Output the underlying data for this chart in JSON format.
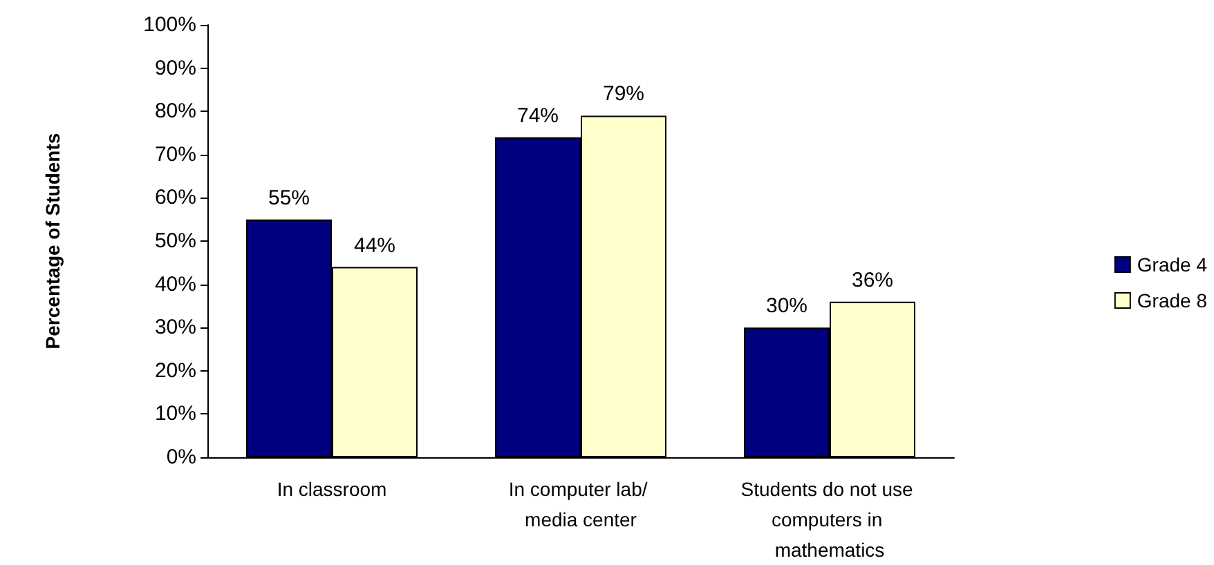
{
  "chart_data": {
    "type": "bar",
    "ylabel": "Percentage of Students",
    "categories": [
      "In classroom",
      "In computer lab/ media center",
      "Students do not use computers in mathematics"
    ],
    "series": [
      {
        "name": "Grade 4",
        "color": "#000080",
        "values": [
          55,
          74,
          30
        ],
        "value_labels": [
          "55%",
          "74%",
          "30%"
        ]
      },
      {
        "name": "Grade 8",
        "color": "#ffffcc",
        "values": [
          44,
          79,
          36
        ],
        "value_labels": [
          "44%",
          "79%",
          "36%"
        ]
      }
    ],
    "ylim": [
      0,
      100
    ],
    "yticks": [
      {
        "value": 0,
        "label": "0%"
      },
      {
        "value": 10,
        "label": "10%"
      },
      {
        "value": 20,
        "label": "20%"
      },
      {
        "value": 30,
        "label": "30%"
      },
      {
        "value": 40,
        "label": "40%"
      },
      {
        "value": 50,
        "label": "50%"
      },
      {
        "value": 60,
        "label": "60%"
      },
      {
        "value": 70,
        "label": "70%"
      },
      {
        "value": 80,
        "label": "80%"
      },
      {
        "value": 90,
        "label": "90%"
      },
      {
        "value": 100,
        "label": "100%"
      }
    ],
    "grid": false,
    "legend": "right"
  }
}
